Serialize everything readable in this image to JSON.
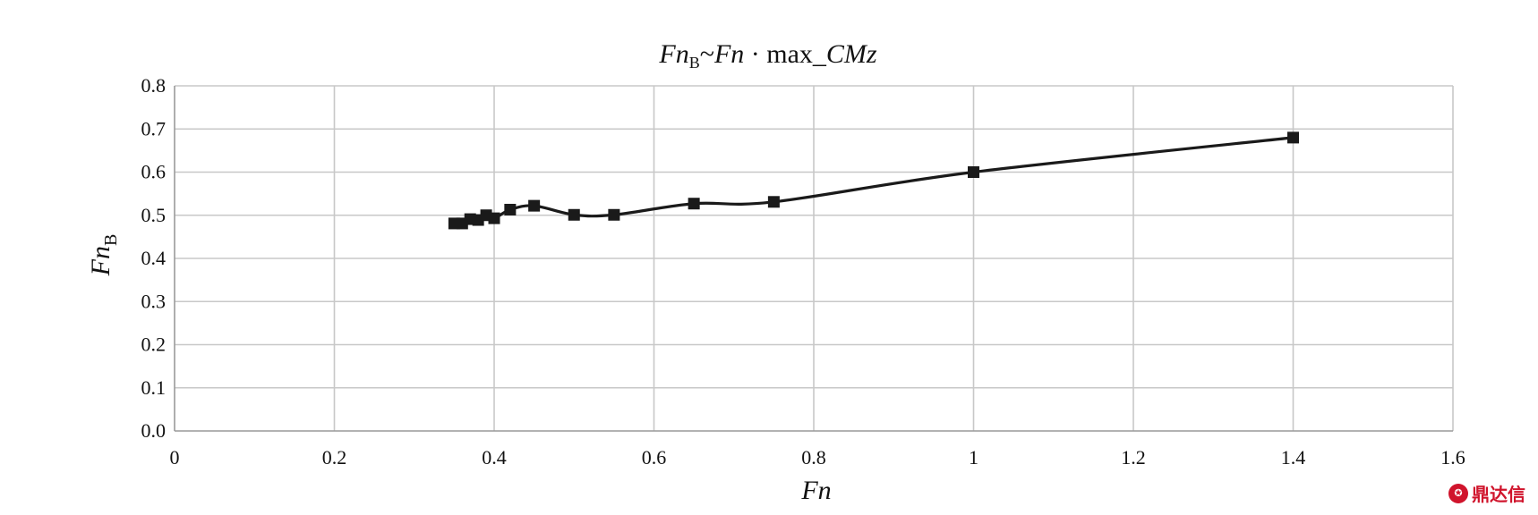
{
  "chart_data": {
    "type": "line",
    "title": {
      "main": "Fn",
      "main_sub": "B",
      "mid": "~",
      "main2": "Fn",
      "rest": " · max_",
      "rest_italic": "CMz"
    },
    "xlabel": "Fn",
    "ylabel": {
      "main": "Fn",
      "sub": "B"
    },
    "xlim": [
      0,
      1.6
    ],
    "ylim": [
      0,
      0.8
    ],
    "xticks": [
      0,
      0.2,
      0.4,
      0.6,
      0.8,
      1.0,
      1.2,
      1.4,
      1.6
    ],
    "xtick_labels": [
      "0",
      "0.2",
      "0.4",
      "0.6",
      "0.8",
      "1",
      "1.2",
      "1.4",
      "1.6"
    ],
    "yticks": [
      0,
      0.1,
      0.2,
      0.3,
      0.4,
      0.5,
      0.6,
      0.7,
      0.8
    ],
    "ytick_labels": [
      "0.0",
      "0.1",
      "0.2",
      "0.3",
      "0.4",
      "0.5",
      "0.6",
      "0.7",
      "0.8"
    ],
    "grid": true,
    "legend": "none",
    "series": [
      {
        "marker": "square",
        "color": "#1a1a1a",
        "x": [
          0.35,
          0.36,
          0.37,
          0.38,
          0.39,
          0.4,
          0.42,
          0.45,
          0.5,
          0.55,
          0.65,
          0.75,
          1.0,
          1.4
        ],
        "y": [
          0.481,
          0.481,
          0.491,
          0.489,
          0.5,
          0.493,
          0.513,
          0.522,
          0.501,
          0.501,
          0.527,
          0.531,
          0.6,
          0.68
        ]
      }
    ]
  },
  "watermark": {
    "text": "鼎达信",
    "icon": "brand-logo-icon"
  }
}
